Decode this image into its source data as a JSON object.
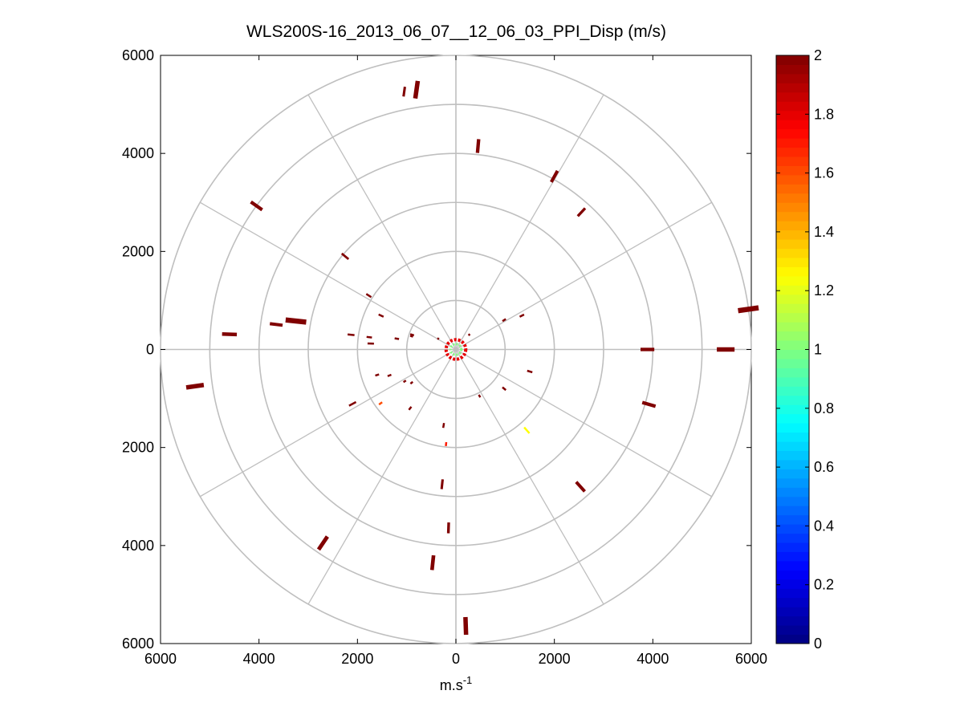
{
  "chart_data": {
    "type": "polar-scatter",
    "title": "WLS200S-16_2013_06_07__12_06_03_PPI_Disp (m/s)",
    "xlabel_base": "m.s",
    "xlabel_sup": "-1",
    "ylabel": "",
    "xlim": [
      -6000,
      6000
    ],
    "ylim": [
      -6000,
      6000
    ],
    "x_ticks": [
      {
        "v": -6000,
        "label": "6000"
      },
      {
        "v": -4000,
        "label": "4000"
      },
      {
        "v": -2000,
        "label": "2000"
      },
      {
        "v": 0,
        "label": "0"
      },
      {
        "v": 2000,
        "label": "2000"
      },
      {
        "v": 4000,
        "label": "4000"
      },
      {
        "v": 6000,
        "label": "6000"
      }
    ],
    "y_ticks": [
      {
        "v": 6000,
        "label": "6000"
      },
      {
        "v": 4000,
        "label": "4000"
      },
      {
        "v": 2000,
        "label": "2000"
      },
      {
        "v": 0,
        "label": "0"
      },
      {
        "v": -2000,
        "label": "2000"
      },
      {
        "v": -4000,
        "label": "4000"
      },
      {
        "v": -6000,
        "label": "6000"
      }
    ],
    "polar_grid": {
      "rings": [
        1000,
        2000,
        3000,
        4000,
        5000,
        6000
      ],
      "spokes_deg": [
        0,
        30,
        60,
        90,
        120,
        150,
        180,
        210,
        240,
        270,
        300,
        330
      ],
      "grid": true,
      "color": "#bfbfbf"
    },
    "colorbar": {
      "min": 0,
      "max": 2,
      "colormap": "jet",
      "ticks": [
        "0",
        "0.2",
        "0.4",
        "0.6",
        "0.8",
        "1",
        "1.2",
        "1.4",
        "1.6",
        "1.8",
        "2"
      ]
    },
    "series": [
      {
        "comment_free": true,
        "points": [
          {
            "x": -800,
            "y": 5300,
            "v": 2.0,
            "az": 8,
            "len": 360
          },
          {
            "x": -1050,
            "y": 5260,
            "v": 2.0,
            "az": 8,
            "len": 200
          },
          {
            "x": 450,
            "y": 4150,
            "v": 2.0,
            "az": 5,
            "len": 280
          },
          {
            "x": 2000,
            "y": 3530,
            "v": 2.0,
            "az": 29,
            "len": 260
          },
          {
            "x": 2550,
            "y": 2800,
            "v": 2.0,
            "az": 43,
            "len": 220
          },
          {
            "x": -4050,
            "y": 2930,
            "v": 2.0,
            "az": 305,
            "len": 280
          },
          {
            "x": -2250,
            "y": 1900,
            "v": 2.0,
            "az": 310,
            "len": 180
          },
          {
            "x": -1770,
            "y": 1100,
            "v": 2.0,
            "az": 302,
            "len": 120
          },
          {
            "x": -4600,
            "y": 310,
            "v": 2.0,
            "az": 272,
            "len": 300
          },
          {
            "x": -3650,
            "y": 510,
            "v": 2.0,
            "az": 277,
            "len": 260
          },
          {
            "x": -3250,
            "y": 580,
            "v": 2.0,
            "az": 276,
            "len": 420
          },
          {
            "x": -2130,
            "y": 300,
            "v": 2.0,
            "az": 276,
            "len": 140
          },
          {
            "x": -1520,
            "y": 690,
            "v": 2.0,
            "az": 295,
            "len": 110
          },
          {
            "x": -1730,
            "y": 120,
            "v": 2.0,
            "az": 272,
            "len": 130
          },
          {
            "x": -1760,
            "y": 250,
            "v": 2.0,
            "az": 277,
            "len": 110
          },
          {
            "x": -1200,
            "y": 220,
            "v": 2.0,
            "az": 280,
            "len": 90
          },
          {
            "x": -890,
            "y": 300,
            "v": 2.0,
            "az": 289,
            "len": 80
          },
          {
            "x": -900,
            "y": 270,
            "v": 2.0,
            "az": 289,
            "len": 60
          },
          {
            "x": 980,
            "y": 600,
            "v": 2.0,
            "az": 58,
            "len": 80
          },
          {
            "x": 1340,
            "y": 690,
            "v": 2.0,
            "az": 63,
            "len": 100
          },
          {
            "x": 5940,
            "y": 820,
            "v": 2.0,
            "az": 82,
            "len": 420
          },
          {
            "x": 5480,
            "y": 0,
            "v": 2.0,
            "az": 90,
            "len": 360
          },
          {
            "x": 3890,
            "y": 0,
            "v": 2.0,
            "az": 90,
            "len": 280
          },
          {
            "x": 1500,
            "y": -450,
            "v": 2.0,
            "az": 107,
            "len": 110
          },
          {
            "x": 980,
            "y": -800,
            "v": 2.0,
            "az": 129,
            "len": 90
          },
          {
            "x": 3920,
            "y": -1120,
            "v": 2.0,
            "az": 106,
            "len": 280
          },
          {
            "x": 480,
            "y": -950,
            "v": 2.0,
            "az": 153,
            "len": 60
          },
          {
            "x": 1440,
            "y": -1650,
            "v": 1.25,
            "az": 139,
            "len": 160
          },
          {
            "x": 2530,
            "y": -2800,
            "v": 2.0,
            "az": 138,
            "len": 260
          },
          {
            "x": -5300,
            "y": -750,
            "v": 2.0,
            "az": 262,
            "len": 360
          },
          {
            "x": -2100,
            "y": -1110,
            "v": 2.0,
            "az": 242,
            "len": 160
          },
          {
            "x": -1530,
            "y": -1100,
            "v": 1.6,
            "az": 234,
            "len": 80
          },
          {
            "x": -1600,
            "y": -520,
            "v": 2.0,
            "az": 252,
            "len": 80
          },
          {
            "x": -1350,
            "y": -530,
            "v": 2.0,
            "az": 249,
            "len": 80
          },
          {
            "x": -900,
            "y": -680,
            "v": 2.0,
            "az": 233,
            "len": 60
          },
          {
            "x": -930,
            "y": -1200,
            "v": 2.0,
            "az": 218,
            "len": 80
          },
          {
            "x": -1040,
            "y": -650,
            "v": 2.0,
            "az": 238,
            "len": 60
          },
          {
            "x": -250,
            "y": -1550,
            "v": 2.0,
            "az": 189,
            "len": 100
          },
          {
            "x": -200,
            "y": -1930,
            "v": 1.7,
            "az": 186,
            "len": 80
          },
          {
            "x": -280,
            "y": -2750,
            "v": 2.0,
            "az": 186,
            "len": 200
          },
          {
            "x": -150,
            "y": -3640,
            "v": 2.0,
            "az": 182,
            "len": 220
          },
          {
            "x": -470,
            "y": -4350,
            "v": 2.0,
            "az": 186,
            "len": 300
          },
          {
            "x": 200,
            "y": -5640,
            "v": 2.0,
            "az": 178,
            "len": 360
          },
          {
            "x": -2700,
            "y": -3950,
            "v": 2.0,
            "az": 214,
            "len": 320
          },
          {
            "x": 270,
            "y": 300,
            "v": 2.0,
            "az": 42,
            "len": 40
          },
          {
            "x": -360,
            "y": 220,
            "v": 2.0,
            "az": 302,
            "len": 40
          }
        ]
      }
    ],
    "center_cluster": {
      "radius": 200,
      "v_outer": 1.8,
      "v_inner": 1.0
    }
  }
}
